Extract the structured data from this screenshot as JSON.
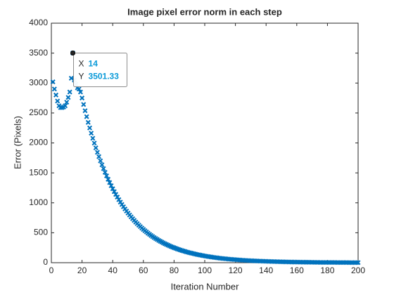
{
  "chart_data": {
    "type": "scatter",
    "title": "Image pixel error norm in each step",
    "x_label": "Iteration Number",
    "y_label": "Error (Pixels)",
    "xlim": [
      0,
      200
    ],
    "ylim": [
      0,
      4000
    ],
    "xticks": [
      0,
      20,
      40,
      60,
      80,
      100,
      120,
      140,
      160,
      180,
      200
    ],
    "yticks": [
      0,
      500,
      1000,
      1500,
      2000,
      2500,
      3000,
      3500,
      4000
    ],
    "marker": "x",
    "grid": false,
    "series": [
      {
        "color": "#0072bd",
        "x": [
          1,
          2,
          3,
          4,
          5,
          6,
          7,
          8,
          9,
          10,
          11,
          12,
          13,
          14,
          15,
          16,
          17,
          18,
          19,
          20,
          21,
          22,
          23,
          24,
          25,
          26,
          27,
          28,
          29,
          30,
          31,
          32,
          33,
          34,
          35,
          36,
          37,
          38,
          39,
          40,
          41,
          42,
          43,
          44,
          45,
          46,
          47,
          48,
          49,
          50,
          51,
          52,
          53,
          54,
          55,
          56,
          57,
          58,
          59,
          60,
          61,
          62,
          63,
          64,
          65,
          66,
          67,
          68,
          69,
          70,
          71,
          72,
          73,
          74,
          75,
          76,
          77,
          78,
          79,
          80,
          81,
          82,
          83,
          84,
          85,
          86,
          87,
          88,
          89,
          90,
          91,
          92,
          93,
          94,
          95,
          96,
          97,
          98,
          99,
          100,
          101,
          102,
          103,
          104,
          105,
          106,
          107,
          108,
          109,
          110,
          111,
          112,
          113,
          114,
          115,
          116,
          117,
          118,
          119,
          120,
          121,
          122,
          123,
          124,
          125,
          126,
          127,
          128,
          129,
          130,
          131,
          132,
          133,
          134,
          135,
          136,
          137,
          138,
          139,
          140,
          141,
          142,
          143,
          144,
          145,
          146,
          147,
          148,
          149,
          150,
          151,
          152,
          153,
          154,
          155,
          156,
          157,
          158,
          159,
          160,
          161,
          162,
          163,
          164,
          165,
          166,
          167,
          168,
          169,
          170,
          171,
          172,
          173,
          174,
          175,
          176,
          177,
          178,
          179,
          180,
          181,
          182,
          183,
          184,
          185,
          186,
          187,
          188,
          189,
          190,
          191,
          192,
          193,
          194,
          195,
          196,
          197,
          198,
          199,
          200
        ],
        "values": [
          3020,
          2900,
          2800,
          2700,
          2620,
          2590,
          2590,
          2600,
          2620,
          2680,
          2760,
          2850,
          3080,
          3501.33,
          3050,
          2980,
          2920,
          2900,
          2850,
          2750,
          2642,
          2538,
          2439,
          2343,
          2251,
          2163,
          2078,
          1997,
          1918,
          1843,
          1771,
          1701,
          1635,
          1571,
          1509,
          1450,
          1393,
          1338,
          1286,
          1235,
          1187,
          1140,
          1096,
          1053,
          1011,
          972,
          934,
          897,
          862,
          828,
          796,
          765,
          735,
          706,
          678,
          652,
          626,
          602,
          578,
          555,
          534,
          513,
          493,
          473,
          455,
          437,
          420,
          403,
          388,
          372,
          358,
          344,
          330,
          317,
          305,
          293,
          281,
          270,
          260,
          250,
          240,
          230,
          221,
          213,
          204,
          196,
          189,
          181,
          174,
          167,
          161,
          155,
          149,
          143,
          137,
          132,
          127,
          122,
          117,
          112,
          108,
          104,
          100,
          96,
          92,
          88,
          85,
          82,
          78,
          75,
          72,
          69,
          67,
          64,
          62,
          59,
          57,
          55,
          53,
          51,
          49,
          47,
          45,
          43,
          41,
          40,
          38,
          37,
          35,
          34,
          33,
          31,
          30,
          29,
          28,
          27,
          26,
          25,
          24,
          23,
          22,
          21,
          20,
          19,
          19,
          18,
          17,
          16,
          16,
          15,
          15,
          14,
          13,
          13,
          12,
          12,
          11,
          11,
          10,
          10,
          10,
          9,
          9,
          9,
          8,
          8,
          8,
          7,
          7,
          7,
          6,
          6,
          6,
          6,
          5,
          5,
          5,
          5,
          5,
          4,
          4,
          4,
          4,
          4,
          4,
          3,
          3,
          3,
          3,
          3,
          3,
          3,
          3,
          2,
          2,
          2,
          2,
          2,
          2,
          2
        ]
      }
    ],
    "datatip": {
      "x_label": "X",
      "x": 14,
      "y_label": "Y",
      "y": 3501.33,
      "index": 13
    }
  }
}
